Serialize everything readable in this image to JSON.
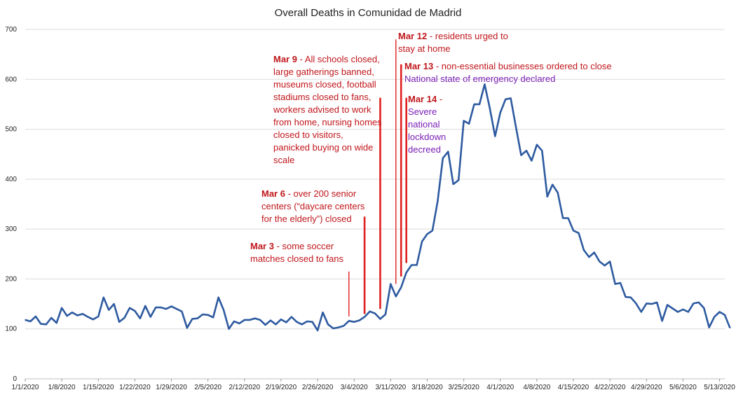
{
  "chart_data": {
    "type": "line",
    "title": "Overall Deaths in Comunidad de Madrid",
    "xlabel": "",
    "ylabel": "",
    "ylim": [
      0,
      700
    ],
    "yticks": [
      "0",
      "100",
      "200",
      "300",
      "400",
      "500",
      "600",
      "700"
    ],
    "grid": true,
    "legend": "none",
    "x_start": "1/1/2020",
    "xticks": [
      "1/1/2020",
      "1/8/2020",
      "1/15/2020",
      "1/22/2020",
      "1/29/2020",
      "2/5/2020",
      "2/12/2020",
      "2/19/2020",
      "2/26/2020",
      "3/4/2020",
      "3/11/2020",
      "3/18/2020",
      "3/25/2020",
      "4/1/2020",
      "4/8/2020",
      "4/15/2020",
      "4/22/2020",
      "4/29/2020",
      "5/6/2020",
      "5/13/2020"
    ],
    "series": [
      {
        "color": "#2d5aa0",
        "values": [
          118,
          115,
          125,
          110,
          109,
          122,
          112,
          142,
          126,
          133,
          127,
          130,
          124,
          119,
          125,
          163,
          138,
          150,
          114,
          122,
          142,
          136,
          121,
          146,
          124,
          143,
          143,
          140,
          145,
          140,
          135,
          102,
          120,
          121,
          129,
          128,
          123,
          163,
          138,
          100,
          115,
          111,
          118,
          118,
          121,
          118,
          108,
          117,
          109,
          119,
          113,
          124,
          114,
          109,
          115,
          114,
          97,
          133,
          109,
          101,
          103,
          106,
          116,
          114,
          117,
          124,
          135,
          131,
          120,
          129,
          190,
          165,
          183,
          213,
          228,
          228,
          275,
          290,
          297,
          356,
          442,
          455,
          390,
          398,
          517,
          511,
          550,
          550,
          590,
          541,
          486,
          533,
          560,
          562,
          504,
          448,
          457,
          437,
          469,
          457,
          365,
          389,
          373,
          322,
          322,
          297,
          292,
          258,
          244,
          253,
          235,
          227,
          235,
          190,
          192,
          164,
          163,
          151,
          134,
          151,
          150,
          153,
          116,
          148,
          141,
          134,
          139,
          134,
          151,
          153,
          142,
          103,
          124,
          134,
          128,
          102
        ]
      }
    ],
    "event_lines": [
      {
        "date": "3/3/2020",
        "y_from": 125,
        "y_to": 215,
        "thin": true
      },
      {
        "date": "3/6/2020",
        "y_from": 130,
        "y_to": 325,
        "thin": false
      },
      {
        "date": "3/9/2020",
        "y_from": 140,
        "y_to": 563,
        "thin": false
      },
      {
        "date": "3/12/2020",
        "y_from": 190,
        "y_to": 680,
        "thin": true
      },
      {
        "date": "3/13/2020",
        "y_from": 205,
        "y_to": 630,
        "thin": false
      },
      {
        "date": "3/14/2020",
        "y_from": 232,
        "y_to": 563,
        "thin": false
      }
    ],
    "annotations": [
      {
        "date_label": "Mar 3",
        "text": "- some soccer matches closed to fans"
      },
      {
        "date_label": "Mar 6",
        "text": "- over 200 senior centers (“daycare centers for the elderly”) closed"
      },
      {
        "date_label": "Mar 9",
        "text": "- All schools closed, large gatherings banned, museums closed, football stadiums closed to fans, workers advised to work from home, nursing homes closed to visitors, panicked buying on wide scale"
      },
      {
        "date_label": "Mar 12",
        "text": "- residents urged to stay at home"
      },
      {
        "date_label": "Mar 13",
        "text": "- non-essential businesses ordered to close",
        "text2": "National state of emergency declared"
      },
      {
        "date_label": "Mar 14",
        "text": "-",
        "text2": "Severe national lockdown decreed"
      }
    ]
  }
}
